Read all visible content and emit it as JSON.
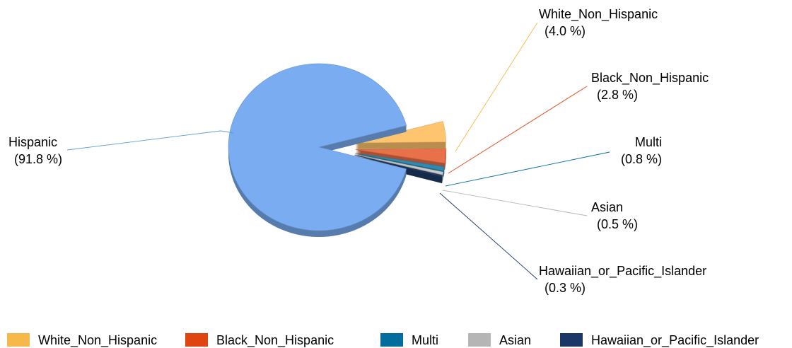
{
  "chart_data": {
    "type": "pie",
    "categories": [
      "White_Non_Hispanic",
      "Black_Non_Hispanic",
      "Multi",
      "Asian",
      "Hawaiian_or_Pacific_Islander",
      "Hispanic"
    ],
    "values": [
      4.0,
      2.8,
      0.8,
      0.5,
      0.3,
      91.8
    ],
    "value_labels": [
      "(4.0 %)",
      "(2.8 %)",
      "(0.8 %)",
      "(0.5 %)",
      "(0.3 %)",
      "(91.8 %)"
    ],
    "colors": [
      "#FFC56E",
      "#E8714A",
      "#2E8AB0",
      "#C8C8C8",
      "#1E3A66",
      "#79ACF0"
    ],
    "legend": {
      "placement": "bottom",
      "items": [
        {
          "label": "White_Non_Hispanic",
          "color": "#F7B84A"
        },
        {
          "label": "Black_Non_Hispanic",
          "color": "#E0440F"
        },
        {
          "label": "Multi",
          "color": "#006D9C"
        },
        {
          "label": "Asian",
          "color": "#B5B5B5"
        },
        {
          "label": "Hawaiian_or_Pacific_Islander",
          "color": "#1B3768"
        }
      ]
    }
  }
}
